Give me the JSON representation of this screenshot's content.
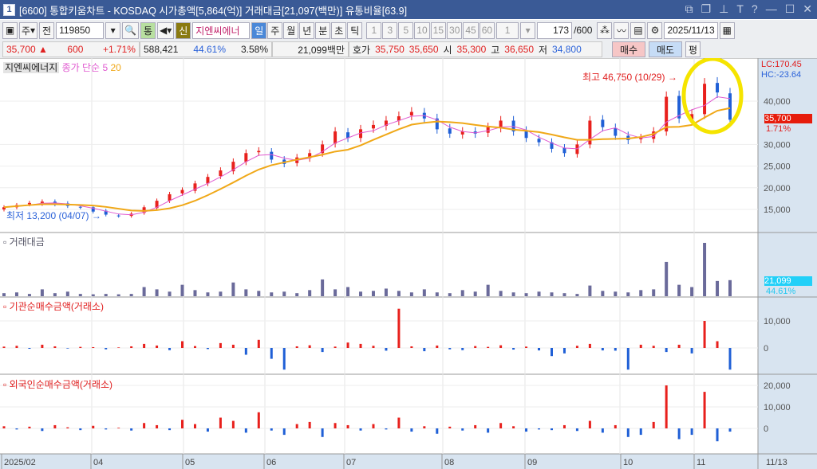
{
  "window": {
    "number": "1",
    "title": "[6600] 통합키움차트 - KOSDAQ 시가총액[5,864(억)] 거래대금[21,097(백만)] 유통비율[63.9]",
    "controls": [
      "restore-icon",
      "copy-icon",
      "pin-icon",
      "text-icon",
      "help-icon",
      "minimize-icon",
      "maximize-icon",
      "close-icon"
    ]
  },
  "toolbar": {
    "market": "주",
    "prev": "전",
    "code": "119850",
    "tong": "통",
    "shin": "신",
    "stock_name": "지엔씨에너",
    "periods": [
      "일",
      "주",
      "월",
      "년",
      "분",
      "초",
      "틱"
    ],
    "active_period": "일",
    "minutes": [
      "1",
      "3",
      "5",
      "10",
      "15",
      "30",
      "45",
      "60"
    ],
    "multiplier": "1",
    "count": "173",
    "count_max": "/600",
    "date": "2025/11/13"
  },
  "quote": {
    "price": "35,700",
    "arrow": "▲",
    "change": "600",
    "pct": "+1.71%",
    "volume": "588,421",
    "vol_ratio": "44.61%",
    "turnover": "3.58%",
    "amount": "21,099백만",
    "ask_label": "호가",
    "ask": "35,750",
    "bid": "35,650",
    "open_label": "시",
    "open": "35,300",
    "high_label": "고",
    "high": "36,650",
    "low_label": "저",
    "low": "34,800",
    "buy": "매수",
    "sell": "매도",
    "avg": "평"
  },
  "price_pane": {
    "name": "지엔씨에너지",
    "ma_label": "종가 단순",
    "ma5": "5",
    "ma20": "20",
    "lc": "LC:170.45",
    "hc": "HC:-23.64",
    "ticks": [
      "15,000",
      "20,000",
      "25,000",
      "30,000",
      "35,000",
      "40,000"
    ],
    "tick_values": [
      15000,
      20000,
      25000,
      30000,
      35000,
      40000
    ],
    "current": "35,700",
    "current_pct": "1.71%",
    "high_note": "최고 46,750 (10/29)",
    "low_note": "최저 13,200 (04/07)",
    "colors": {
      "up": "#e8201c",
      "down": "#1f5fd6",
      "ma5": "#e05ad0",
      "ma20": "#f0a818",
      "highlight": "#f5e400"
    }
  },
  "volume_pane": {
    "name": "거래대금",
    "current": "21,099",
    "pct": "44.61%"
  },
  "inst_pane": {
    "name": "기관순매수금액(거래소)",
    "ticks": [
      "10,000",
      "0"
    ]
  },
  "foreign_pane": {
    "name": "외국인순매수금액(거래소)",
    "ticks": [
      "20,000",
      "10,000",
      "0"
    ]
  },
  "x_axis": {
    "labels": [
      "2025/02",
      "04",
      "05",
      "06",
      "07",
      "08",
      "09",
      "10",
      "11"
    ],
    "end": "11/13"
  },
  "chart_data": {
    "type": "candlestick",
    "close": [
      15500,
      16000,
      16500,
      16800,
      16200,
      15800,
      15500,
      14500,
      13800,
      13500,
      14000,
      15500,
      17000,
      18500,
      19500,
      21000,
      22500,
      24000,
      26000,
      28000,
      28500,
      26500,
      25500,
      27000,
      28000,
      30000,
      33000,
      31500,
      33500,
      34500,
      35500,
      36500,
      37500,
      36000,
      33500,
      32500,
      33000,
      32500,
      34000,
      35500,
      33000,
      31500,
      30500,
      29000,
      28000,
      30000,
      35500,
      34000,
      32000,
      31000,
      31500,
      33000,
      41000,
      36000,
      37000,
      44000,
      42000,
      35700
    ],
    "amount": [
      4000,
      5000,
      3000,
      9000,
      4000,
      6000,
      3000,
      2500,
      3000,
      2500,
      3000,
      12000,
      9000,
      6000,
      15000,
      8000,
      5000,
      6000,
      18000,
      9000,
      7000,
      5000,
      6000,
      4000,
      8000,
      22000,
      9000,
      12000,
      6000,
      7000,
      10000,
      7000,
      5000,
      9000,
      5000,
      4000,
      8000,
      6000,
      15000,
      7000,
      5000,
      4000,
      6000,
      5000,
      4000,
      3000,
      14000,
      7000,
      6000,
      5000,
      8000,
      9000,
      45000,
      15000,
      12000,
      70000,
      20000,
      21099
    ],
    "inst": [
      500,
      800,
      -300,
      1200,
      600,
      -200,
      400,
      300,
      -500,
      200,
      600,
      1500,
      900,
      -800,
      2500,
      700,
      -400,
      1800,
      1200,
      -2500,
      3000,
      -4000,
      -8000,
      600,
      1000,
      -1500,
      500,
      2000,
      1500,
      800,
      -1000,
      14500,
      600,
      -1200,
      900,
      -500,
      -800,
      700,
      400,
      1000,
      -600,
      500,
      -900,
      -3000,
      -2000,
      800,
      1500,
      -900,
      -1000,
      -8000,
      1200,
      800,
      -1500,
      1200,
      -2000,
      10000,
      2500,
      -8000
    ],
    "foreign": [
      1000,
      -500,
      800,
      -1200,
      1500,
      500,
      -800,
      1200,
      -500,
      300,
      -1000,
      2500,
      1500,
      -800,
      4000,
      2000,
      -1500,
      5000,
      3500,
      -2000,
      7500,
      -1000,
      -3000,
      2000,
      3000,
      -4000,
      2500,
      1500,
      -1000,
      2000,
      -500,
      5000,
      -1500,
      1000,
      -2500,
      800,
      -1000,
      1500,
      -2000,
      2500,
      1000,
      -1500,
      -500,
      -800,
      1500,
      -1200,
      3500,
      -2000,
      1500,
      -4000,
      -3000,
      3000,
      20000,
      -5000,
      -3000,
      17000,
      -6000,
      -1500
    ]
  }
}
